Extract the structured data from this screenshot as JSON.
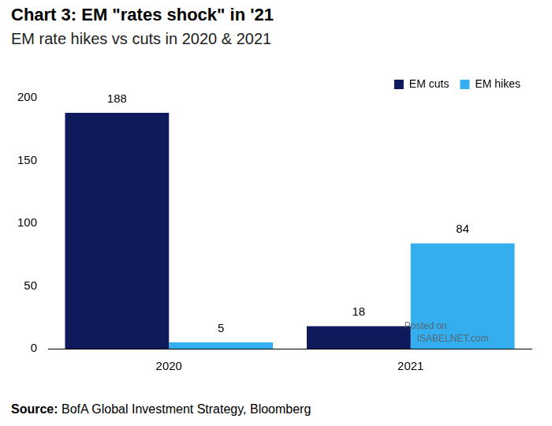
{
  "chart_data": {
    "type": "bar",
    "title": "Chart 3: EM \"rates shock\" in '21",
    "subtitle": "EM rate hikes vs cuts in 2020 & 2021",
    "categories": [
      "2020",
      "2021"
    ],
    "series": [
      {
        "name": "EM cuts",
        "color": "#0f1a5c",
        "values": [
          188,
          18
        ]
      },
      {
        "name": "EM hikes",
        "color": "#35aef0",
        "values": [
          5,
          84
        ]
      }
    ],
    "ylim": [
      0,
      200
    ],
    "yticks": [
      0,
      50,
      100,
      150,
      200
    ],
    "grid": false,
    "legend": "top-right",
    "data_labels": true,
    "source": "Source: BofA Global Investment Strategy, Bloomberg",
    "watermark": [
      "Posted on",
      "ISABELNET.com"
    ]
  }
}
